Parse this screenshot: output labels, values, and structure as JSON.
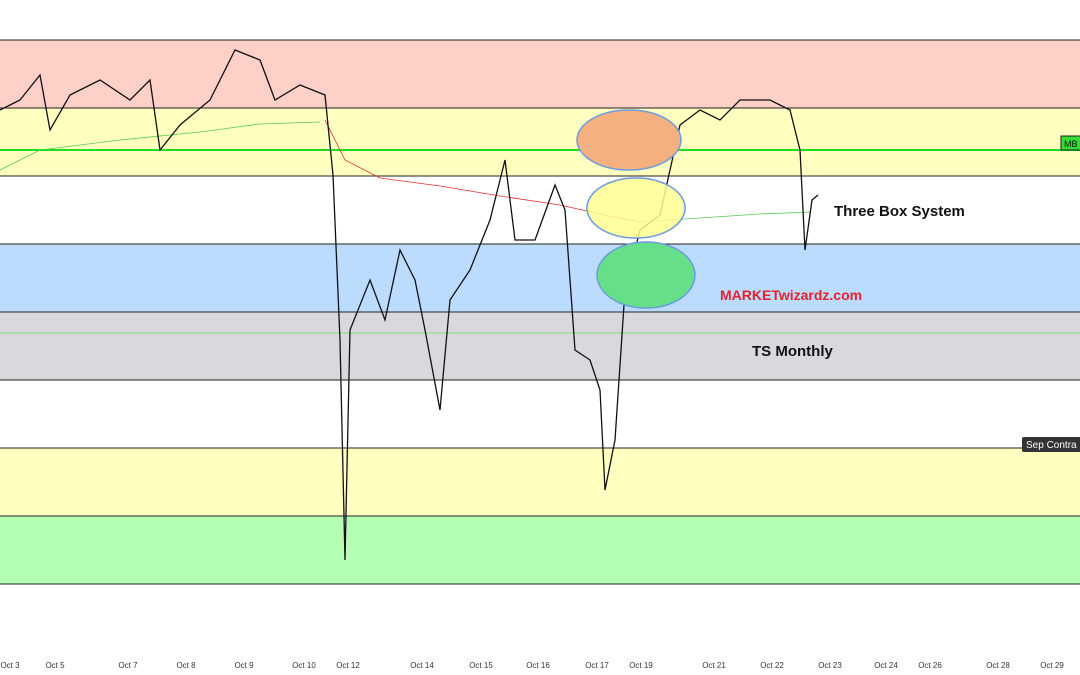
{
  "annotations": {
    "system": "Three Box System",
    "brand": "MARKETwizardz.com",
    "box": "TS Monthly"
  },
  "price_tags": [
    "MB",
    "Sep Contra"
  ],
  "x_axis": {
    "labels": [
      "Oct 3",
      "Oct 5",
      "Oct 7",
      "Oct 8",
      "Oct 9",
      "Oct 10",
      "Oct 12",
      "Oct 14",
      "Oct 15",
      "Oct 16",
      "Oct 17",
      "Oct 19",
      "Oct 21",
      "Oct 22",
      "Oct 23",
      "Oct 24",
      "Oct 26",
      "Oct 28",
      "Oct 29"
    ]
  }
}
